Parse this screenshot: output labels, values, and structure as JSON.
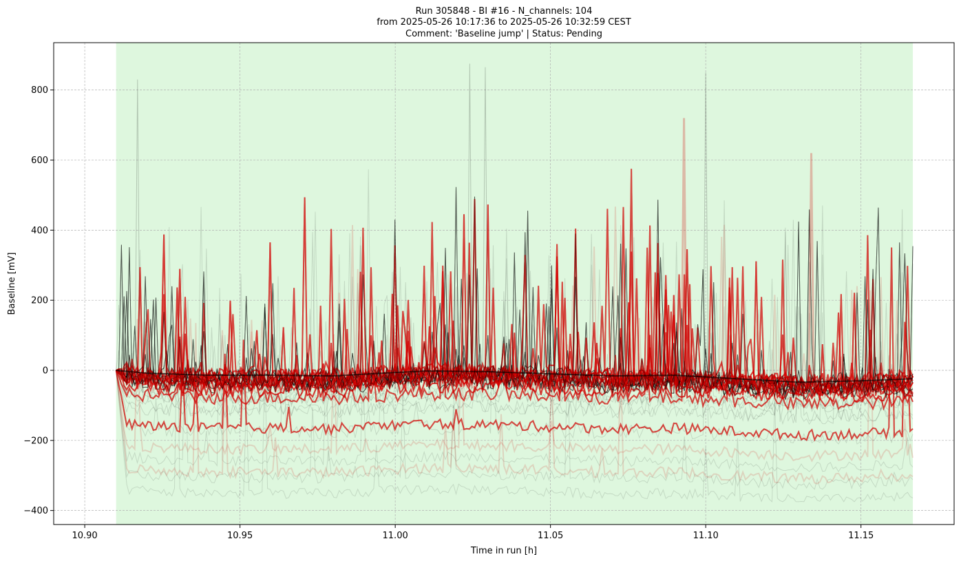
{
  "chart_data": {
    "type": "line",
    "title_lines": [
      "Run 305848  -  BI #16  -  N_channels: 104",
      "from  2025-05-26 10:17:36  to  2025-05-26 10:32:59 CEST",
      "Comment: 'Baseline jump' | Status: Pending"
    ],
    "xlabel": "Time in run [h]",
    "ylabel": "Baseline [mV]",
    "xlim": [
      10.89,
      11.18
    ],
    "ylim": [
      -440,
      935
    ],
    "xticks": [
      10.9,
      10.95,
      11.0,
      11.05,
      11.1,
      11.15
    ],
    "xtick_labels": [
      "10.90",
      "10.95",
      "11.00",
      "11.05",
      "11.10",
      "11.15"
    ],
    "yticks": [
      -400,
      -200,
      0,
      200,
      400,
      600,
      800
    ],
    "ytick_labels": [
      "−400",
      "−200",
      "0",
      "200",
      "400",
      "600",
      "800"
    ],
    "grid": true,
    "shaded_region": {
      "x_start": 10.9101,
      "x_end": 11.1667,
      "color": "#d6f5d6"
    },
    "n_channels": 104,
    "series_summary": {
      "x_start": 10.9101,
      "x_end": 11.1667,
      "normal_channels_color": "#000000",
      "flagged_channels_color": "#d40000",
      "median_trace": {
        "x": [
          10.91,
          10.92,
          10.94,
          10.96,
          10.98,
          11.0,
          11.01,
          11.03,
          11.05,
          11.07,
          11.09,
          11.11,
          11.13,
          11.15,
          11.1667
        ],
        "y": [
          0,
          -8,
          -14,
          -14,
          -16,
          -6,
          -2,
          -4,
          -10,
          -16,
          -14,
          -24,
          -34,
          -30,
          -24
        ]
      },
      "lower_envelope_mV": -375,
      "typical_spike_max_mV": 600,
      "largest_spikes": [
        {
          "x": 11.024,
          "y": 875
        },
        {
          "x": 11.1,
          "y": 850
        },
        {
          "x": 10.917,
          "y": 830
        },
        {
          "x": 11.029,
          "y": 865
        },
        {
          "x": 11.093,
          "y": 720
        },
        {
          "x": 11.134,
          "y": 620
        }
      ]
    }
  }
}
